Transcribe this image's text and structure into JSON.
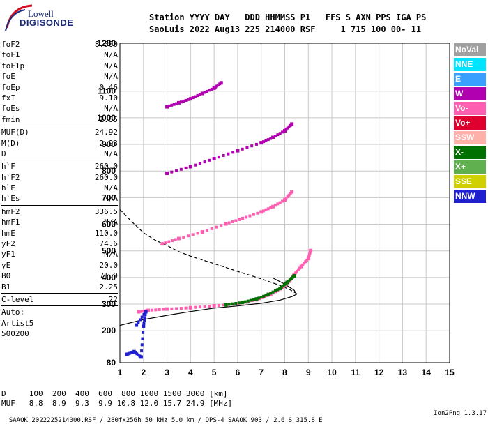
{
  "logo": {
    "line1": "Lowell",
    "line2": "DIGISONDE"
  },
  "header": {
    "line1": "Station YYYY DAY   DDD HHMMSS P1   FFS S AXN PPS IGA PS",
    "line2": "SaoLuis 2022 Aug13 225 214000 RSF     1 715 100 00- 11"
  },
  "params": [
    [
      {
        "k": "foF2",
        "v": "8.500"
      },
      {
        "k": "foF1",
        "v": "N/A"
      },
      {
        "k": "foF1p",
        "v": "N/A"
      },
      {
        "k": "foE",
        "v": "N/A"
      },
      {
        "k": "foEp",
        "v": "0.46"
      },
      {
        "k": "fxI",
        "v": "9.10"
      },
      {
        "k": "foEs",
        "v": "N/A"
      },
      {
        "k": "fmin",
        "v": "1.85"
      }
    ],
    [
      {
        "k": "MUF(D)",
        "v": "24.92"
      },
      {
        "k": "M(D)",
        "v": "2.93"
      },
      {
        "k": "D",
        "v": "N/A"
      }
    ],
    [
      {
        "k": "h`F",
        "v": "260.0"
      },
      {
        "k": "h`F2",
        "v": "260.0"
      },
      {
        "k": "h`E",
        "v": "N/A"
      },
      {
        "k": "h`Es",
        "v": "N/A"
      }
    ],
    [
      {
        "k": "hmF2",
        "v": "336.5"
      },
      {
        "k": "hmF1",
        "v": "N/A"
      },
      {
        "k": "hmE",
        "v": "110.0"
      },
      {
        "k": "yF2",
        "v": "74.6"
      },
      {
        "k": "yF1",
        "v": "N/A"
      },
      {
        "k": "yE",
        "v": "20.0"
      },
      {
        "k": "B0",
        "v": "71.9"
      },
      {
        "k": "B1",
        "v": "2.25"
      }
    ],
    [
      {
        "k": "C-level",
        "v": "22"
      }
    ]
  ],
  "auto": {
    "l1": "Auto:",
    "l2": "Artist5",
    "l3": "500200"
  },
  "legend": [
    {
      "label": "NoVal",
      "color": "#a0a0a0"
    },
    {
      "label": "NNE",
      "color": "#00e5ff"
    },
    {
      "label": "E",
      "color": "#3aa0ff"
    },
    {
      "label": "W",
      "color": "#b000b0"
    },
    {
      "label": "Vo-",
      "color": "#ff5fb0"
    },
    {
      "label": "Vo+",
      "color": "#e00030"
    },
    {
      "label": "SSW",
      "color": "#ffb0a8"
    },
    {
      "label": "X-",
      "color": "#007000"
    },
    {
      "label": "X+",
      "color": "#60b050"
    },
    {
      "label": "SSE",
      "color": "#d0d000"
    },
    {
      "label": "NNW",
      "color": "#2020d0"
    }
  ],
  "footer": {
    "d_row": "D     100  200  400  600  800 1000 1500 3000 [km]",
    "muf_row": "MUF   8.8  8.9  9.3  9.9 10.8 12.0 15.7 24.9 [MHz]"
  },
  "bottom": {
    "left": "SAAOK_2022225214000.RSF / 280fx256h 50 kHz 5.0 km / DPS-4 SAAOK 903 / 2.6 S 315.8 E",
    "right": "Ion2Png 1.3.17"
  },
  "chart_data": {
    "type": "scatter",
    "xlim": [
      1,
      15
    ],
    "ylim": [
      80,
      1280
    ],
    "x_ticks": [
      1,
      2,
      3,
      4,
      5,
      6,
      7,
      8,
      9,
      10,
      11,
      12,
      13,
      14,
      15
    ],
    "y_ticks": [
      80,
      200,
      300,
      400,
      500,
      600,
      700,
      800,
      900,
      1000,
      1100,
      1280
    ],
    "grid": true,
    "series": [
      {
        "name": "O-trace",
        "color": "#ff5fb0",
        "points": [
          [
            1.8,
            270
          ],
          [
            2.2,
            275
          ],
          [
            3,
            280
          ],
          [
            4,
            285
          ],
          [
            5,
            292
          ],
          [
            6,
            300
          ],
          [
            6.8,
            315
          ],
          [
            7.4,
            335
          ],
          [
            7.9,
            360
          ],
          [
            8.2,
            385
          ],
          [
            8.4,
            410
          ],
          [
            8.7,
            440
          ],
          [
            9.0,
            470
          ],
          [
            9.1,
            500
          ]
        ]
      },
      {
        "name": "X-trace",
        "color": "#007000",
        "points": [
          [
            5.5,
            296
          ],
          [
            6.2,
            305
          ],
          [
            6.8,
            318
          ],
          [
            7.3,
            335
          ],
          [
            7.8,
            358
          ],
          [
            8.1,
            380
          ],
          [
            8.4,
            405
          ]
        ]
      },
      {
        "name": "2nd-hop",
        "color": "#ff5fb0",
        "points": [
          [
            2.8,
            525
          ],
          [
            3.5,
            545
          ],
          [
            4.5,
            570
          ],
          [
            5.5,
            600
          ],
          [
            6.2,
            620
          ],
          [
            7,
            645
          ],
          [
            7.5,
            665
          ],
          [
            8,
            690
          ],
          [
            8.3,
            720
          ]
        ]
      },
      {
        "name": "3rd-hop",
        "color": "#b000b0",
        "points": [
          [
            3,
            790
          ],
          [
            4,
            815
          ],
          [
            5,
            845
          ],
          [
            6,
            875
          ],
          [
            7,
            905
          ],
          [
            7.5,
            925
          ],
          [
            8,
            950
          ],
          [
            8.3,
            975
          ]
        ]
      },
      {
        "name": "4th-hop",
        "color": "#b000b0",
        "points": [
          [
            3,
            1040
          ],
          [
            3.5,
            1055
          ],
          [
            4,
            1070
          ],
          [
            4.5,
            1090
          ],
          [
            5,
            1110
          ],
          [
            5.3,
            1130
          ]
        ]
      },
      {
        "name": "Es/low",
        "color": "#2020d0",
        "points": [
          [
            1.3,
            110
          ],
          [
            1.6,
            120
          ],
          [
            1.9,
            100
          ],
          [
            2,
            215
          ],
          [
            2.1,
            270
          ],
          [
            1.7,
            220
          ]
        ]
      }
    ],
    "profile": [
      [
        1,
        220
      ],
      [
        2,
        242
      ],
      [
        3,
        258
      ],
      [
        4,
        272
      ],
      [
        5,
        285
      ],
      [
        6,
        293
      ],
      [
        7,
        303
      ],
      [
        7.8,
        315
      ],
      [
        8.3,
        328
      ],
      [
        8.5,
        337
      ],
      [
        8.4,
        352
      ],
      [
        8,
        375
      ],
      [
        7.5,
        398
      ]
    ],
    "dashed_profile": [
      [
        1,
        655
      ],
      [
        1.5,
        610
      ],
      [
        2,
        568
      ],
      [
        2.5,
        540
      ],
      [
        3,
        520
      ],
      [
        3.5,
        497
      ],
      [
        4,
        480
      ],
      [
        5,
        452
      ],
      [
        6,
        423
      ],
      [
        7,
        395
      ],
      [
        7.8,
        370
      ],
      [
        8.2,
        355
      ],
      [
        8.5,
        340
      ]
    ]
  }
}
